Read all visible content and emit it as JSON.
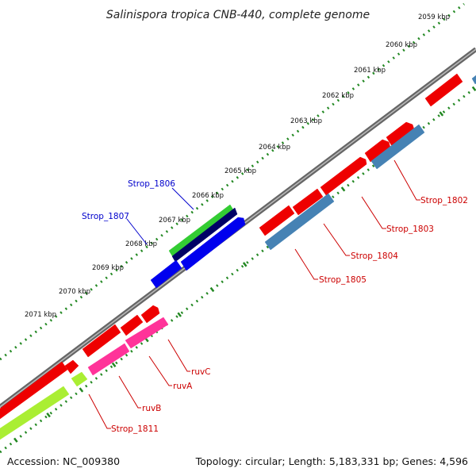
{
  "title": "Salinispora tropica CNB-440, complete genome",
  "kbp_ticks": [
    "2059 kbp",
    "2060 kbp",
    "2061 kbp",
    "2062 kbp",
    "2063 kbp",
    "2064 kbp",
    "2065 kbp",
    "2066 kbp",
    "2067 kbp",
    "2068 kbp",
    "2069 kbp",
    "2070 kbp",
    "2071 kbp"
  ],
  "gene_labels": [
    {
      "id": "strop-1806",
      "text": "Strop_1806",
      "color": "#0000cc"
    },
    {
      "id": "strop-1807",
      "text": "Strop_1807",
      "color": "#0000cc"
    },
    {
      "id": "strop-1802",
      "text": "Strop_1802",
      "color": "#cc0000"
    },
    {
      "id": "strop-1803",
      "text": "Strop_1803",
      "color": "#cc0000"
    },
    {
      "id": "strop-1804",
      "text": "Strop_1804",
      "color": "#cc0000"
    },
    {
      "id": "strop-1805",
      "text": "Strop_1805",
      "color": "#cc0000"
    },
    {
      "id": "ruvc",
      "text": "ruvC",
      "color": "#cc0000"
    },
    {
      "id": "ruva",
      "text": "ruvA",
      "color": "#cc0000"
    },
    {
      "id": "ruvb",
      "text": "ruvB",
      "color": "#cc0000"
    },
    {
      "id": "strop-1811",
      "text": "Strop_1811",
      "color": "#cc0000"
    }
  ],
  "colors": {
    "cds": "#ee0000",
    "gene_blue": "#0000ee",
    "gene_steel": "#4682b4",
    "gene_pink": "#ff3399",
    "gene_green": "#33cc33",
    "gene_lime": "#aaee33",
    "gene_navy": "#000066",
    "backbone": "#888888",
    "ruler": "#228822"
  },
  "footer": {
    "accession": "Accession: NC_009380",
    "summary": "Topology: circular; Length: 5,183,331 bp; Genes: 4,596"
  }
}
